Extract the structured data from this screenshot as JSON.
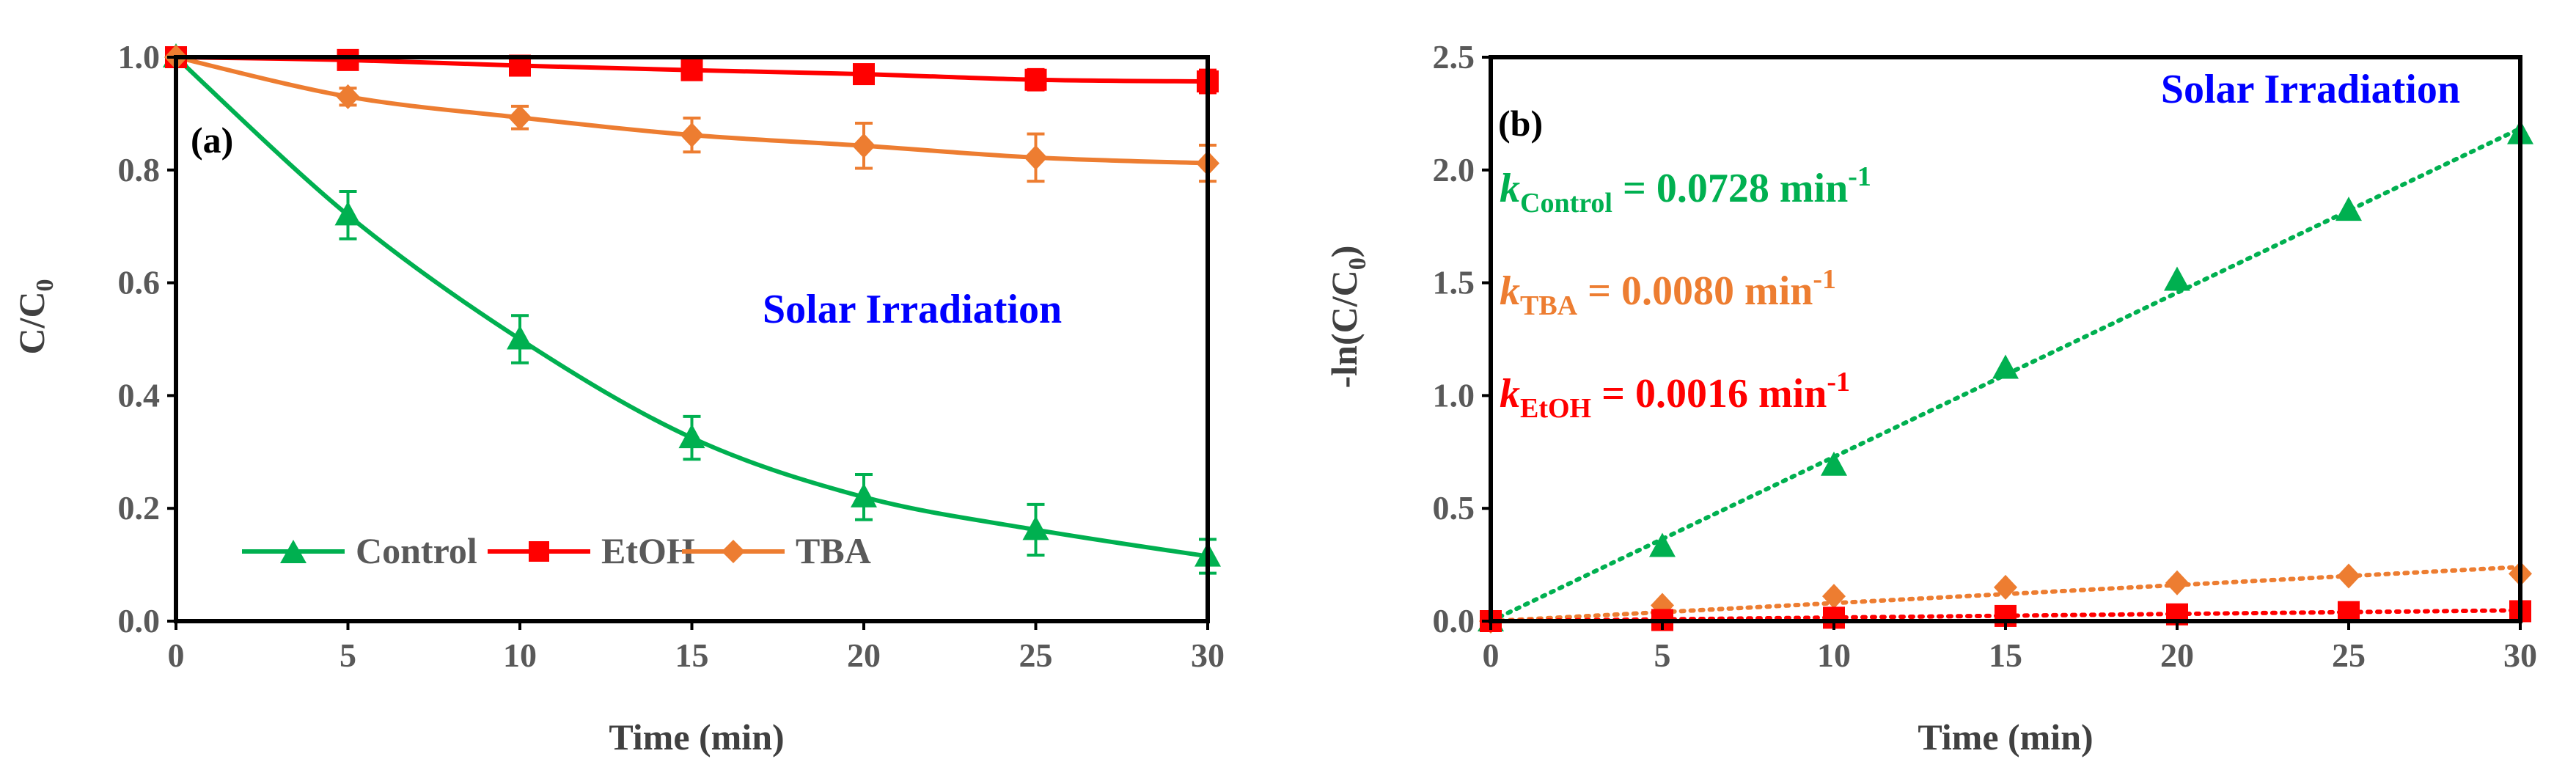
{
  "colors": {
    "control": "#00B050",
    "etoh": "#FF0000",
    "tba": "#ED7D31",
    "irradiation": "#0000FF",
    "axis": "#000000",
    "tick_text": "#595959"
  },
  "chart_data": [
    {
      "type": "line",
      "panel_label": "(a)",
      "annotation": "Solar Irradiation",
      "xlabel": "Time (min)",
      "ylabel_main": "C/C",
      "ylabel_sub": "0",
      "xlim": [
        0,
        30
      ],
      "ylim": [
        0,
        1.0
      ],
      "x_ticks": [
        0,
        5,
        10,
        15,
        20,
        25,
        30
      ],
      "y_ticks": [
        0.0,
        0.2,
        0.4,
        0.6,
        0.8,
        1.0
      ],
      "y_tick_labels": [
        "0.0",
        "0.2",
        "0.4",
        "0.6",
        "0.8",
        "1.0"
      ],
      "x_tick_labels": [
        "0",
        "5",
        "10",
        "15",
        "20",
        "25",
        "30"
      ],
      "x": [
        0,
        5,
        10,
        15,
        20,
        25,
        30
      ],
      "series": [
        {
          "name": "Control",
          "key": "control",
          "marker": "triangle",
          "values": [
            1.0,
            0.72,
            0.5,
            0.325,
            0.22,
            0.162,
            0.115
          ],
          "errors": [
            0,
            0.042,
            0.042,
            0.038,
            0.04,
            0.045,
            0.03
          ]
        },
        {
          "name": "EtOH",
          "key": "etoh",
          "marker": "square",
          "values": [
            1.0,
            0.995,
            0.985,
            0.977,
            0.97,
            0.96,
            0.957
          ],
          "errors": [
            0,
            0.01,
            0.012,
            0.012,
            0.016,
            0.018,
            0.02
          ]
        },
        {
          "name": "TBA",
          "key": "tba",
          "marker": "diamond",
          "values": [
            1.0,
            0.93,
            0.893,
            0.862,
            0.843,
            0.822,
            0.812
          ],
          "errors": [
            0,
            0.015,
            0.02,
            0.03,
            0.04,
            0.042,
            0.032
          ]
        }
      ],
      "legend": [
        "Control",
        "EtOH",
        "TBA"
      ],
      "legend_position": "bottom-left"
    },
    {
      "type": "scatter",
      "panel_label": "(b)",
      "annotation": "Solar Irradiation",
      "xlabel": "Time (min)",
      "ylabel_main": "-ln(C/C",
      "ylabel_sub": "0",
      "ylabel_tail": ")",
      "xlim": [
        0,
        30
      ],
      "ylim": [
        0,
        2.5
      ],
      "x_ticks": [
        0,
        5,
        10,
        15,
        20,
        25,
        30
      ],
      "y_ticks": [
        0.0,
        0.5,
        1.0,
        1.5,
        2.0,
        2.5
      ],
      "y_tick_labels": [
        "0.0",
        "0.5",
        "1.0",
        "1.5",
        "2.0",
        "2.5"
      ],
      "x_tick_labels": [
        "0",
        "5",
        "10",
        "15",
        "20",
        "25",
        "30"
      ],
      "x": [
        0,
        5,
        10,
        15,
        20,
        25,
        30
      ],
      "series": [
        {
          "name": "Control",
          "key": "control",
          "marker": "triangle",
          "values": [
            0,
            0.33,
            0.69,
            1.12,
            1.51,
            1.82,
            2.16
          ],
          "slope": 0.0728
        },
        {
          "name": "TBA",
          "key": "tba",
          "marker": "diamond",
          "values": [
            0,
            0.07,
            0.11,
            0.15,
            0.17,
            0.2,
            0.21
          ],
          "slope": 0.008
        },
        {
          "name": "EtOH",
          "key": "etoh",
          "marker": "square",
          "values": [
            0,
            0.005,
            0.015,
            0.023,
            0.03,
            0.04,
            0.044
          ],
          "slope": 0.0016
        }
      ],
      "rate_labels": [
        {
          "key": "control",
          "k": "k",
          "sub": "Control",
          "text": " = 0.0728 min",
          "sup": "-1"
        },
        {
          "key": "tba",
          "k": "k",
          "sub": "TBA",
          "text": " = 0.0080 min",
          "sup": "-1"
        },
        {
          "key": "etoh",
          "k": "k",
          "sub": "EtOH",
          "text": " = 0.0016 min",
          "sup": "-1"
        }
      ]
    }
  ]
}
